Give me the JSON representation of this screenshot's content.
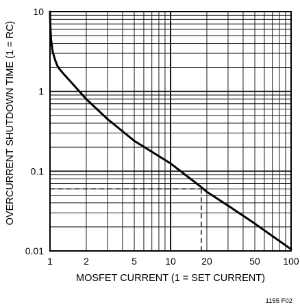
{
  "chart_data": {
    "type": "line",
    "title": "",
    "xlabel": "MOSFET CURRENT (1 = SET CURRENT)",
    "ylabel": "OVERCURRENT SHUTDOWN TIME (1 = RC)",
    "x_scale": "log",
    "y_scale": "log",
    "xlim": [
      1,
      100
    ],
    "ylim": [
      0.01,
      10
    ],
    "grid": true,
    "x_tick_labels": [
      "1",
      "2",
      "5",
      "10",
      "20",
      "50",
      "100"
    ],
    "x_tick_values": [
      1,
      2,
      5,
      10,
      20,
      50,
      100
    ],
    "y_tick_labels": [
      "0.01",
      "0.1",
      "1",
      "10"
    ],
    "y_tick_values": [
      0.01,
      0.1,
      1,
      10
    ],
    "series": [
      {
        "x": [
          1.0,
          1.005,
          1.02,
          1.05,
          1.1,
          1.15,
          1.2,
          1.3,
          1.5,
          2.0,
          3.0,
          5.0,
          10.0,
          18.0,
          20.0,
          30.0,
          50.0,
          100.0
        ],
        "y": [
          10.0,
          7.0,
          4.5,
          3.2,
          2.5,
          2.1,
          1.9,
          1.65,
          1.3,
          0.8,
          0.45,
          0.24,
          0.125,
          0.063,
          0.055,
          0.037,
          0.022,
          0.0105
        ]
      }
    ],
    "annotations": [
      {
        "type": "dashed-guide",
        "x": 18,
        "y": 0.06
      }
    ],
    "footnote": "1155 F02"
  }
}
